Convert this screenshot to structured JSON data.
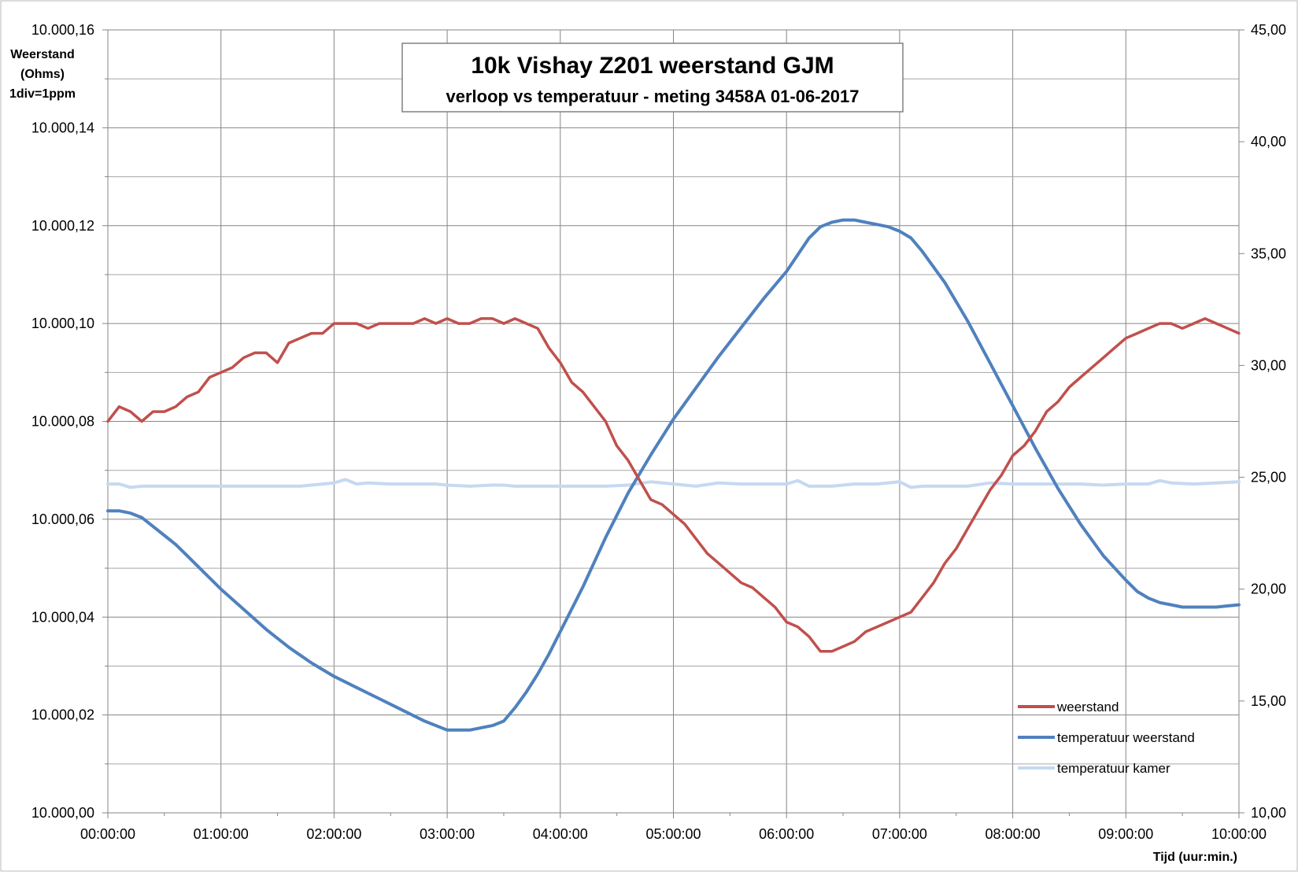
{
  "chart_data": {
    "type": "line",
    "title": "10k Vishay  Z201 weerstand GJM",
    "subtitle": "verloop vs temperatuur  - meting 3458A 01-06-2017",
    "ylabel_lines": [
      "Weerstand",
      "(Ohms)",
      "1div=1ppm"
    ],
    "xlabel": "Tijd (uur:min.)",
    "x_ticks": [
      "00:00:00",
      "01:00:00",
      "02:00:00",
      "03:00:00",
      "04:00:00",
      "05:00:00",
      "06:00:00",
      "07:00:00",
      "08:00:00",
      "09:00:00",
      "10:00:00"
    ],
    "y_left_ticks": [
      "10.000,00",
      "10.000,02",
      "10.000,04",
      "10.000,06",
      "10.000,08",
      "10.000,10",
      "10.000,12",
      "10.000,14",
      "10.000,16"
    ],
    "y_right_ticks": [
      "10,00",
      "15,00",
      "20,00",
      "25,00",
      "30,00",
      "35,00",
      "40,00",
      "45,00"
    ],
    "xlim_hours": [
      0,
      10
    ],
    "ylim_left": [
      10000.0,
      10000.16
    ],
    "ylim_right": [
      10,
      45
    ],
    "grid": true,
    "legend_position": "bottom-right",
    "series": [
      {
        "name": "weerstand",
        "axis": "left",
        "color": "#c0504d",
        "x_hours": [
          0,
          0.1,
          0.2,
          0.3,
          0.4,
          0.5,
          0.6,
          0.7,
          0.8,
          0.9,
          1.0,
          1.1,
          1.2,
          1.3,
          1.4,
          1.5,
          1.6,
          1.7,
          1.8,
          1.9,
          2.0,
          2.1,
          2.2,
          2.3,
          2.4,
          2.5,
          2.6,
          2.7,
          2.8,
          2.9,
          3.0,
          3.1,
          3.2,
          3.3,
          3.4,
          3.5,
          3.6,
          3.7,
          3.8,
          3.9,
          4.0,
          4.1,
          4.2,
          4.3,
          4.4,
          4.5,
          4.6,
          4.7,
          4.8,
          4.9,
          5.0,
          5.1,
          5.2,
          5.3,
          5.4,
          5.5,
          5.6,
          5.7,
          5.8,
          5.9,
          6.0,
          6.1,
          6.2,
          6.3,
          6.4,
          6.5,
          6.6,
          6.7,
          6.8,
          6.9,
          7.0,
          7.1,
          7.2,
          7.3,
          7.4,
          7.5,
          7.6,
          7.7,
          7.8,
          7.9,
          8.0,
          8.1,
          8.2,
          8.3,
          8.4,
          8.5,
          8.6,
          8.7,
          8.8,
          8.9,
          9.0,
          9.1,
          9.2,
          9.3,
          9.4,
          9.5,
          9.6,
          9.7,
          9.8,
          9.9,
          10.0
        ],
        "values": [
          10000.08,
          10000.083,
          10000.082,
          10000.08,
          10000.082,
          10000.082,
          10000.083,
          10000.085,
          10000.086,
          10000.089,
          10000.09,
          10000.091,
          10000.093,
          10000.094,
          10000.094,
          10000.092,
          10000.096,
          10000.097,
          10000.098,
          10000.098,
          10000.1,
          10000.1,
          10000.1,
          10000.099,
          10000.1,
          10000.1,
          10000.1,
          10000.1,
          10000.101,
          10000.1,
          10000.101,
          10000.1,
          10000.1,
          10000.101,
          10000.101,
          10000.1,
          10000.101,
          10000.1,
          10000.099,
          10000.095,
          10000.092,
          10000.088,
          10000.086,
          10000.083,
          10000.08,
          10000.075,
          10000.072,
          10000.068,
          10000.064,
          10000.063,
          10000.061,
          10000.059,
          10000.056,
          10000.053,
          10000.051,
          10000.049,
          10000.047,
          10000.046,
          10000.044,
          10000.042,
          10000.039,
          10000.038,
          10000.036,
          10000.033,
          10000.033,
          10000.034,
          10000.035,
          10000.037,
          10000.038,
          10000.039,
          10000.04,
          10000.041,
          10000.044,
          10000.047,
          10000.051,
          10000.054,
          10000.058,
          10000.062,
          10000.066,
          10000.069,
          10000.073,
          10000.075,
          10000.078,
          10000.082,
          10000.084,
          10000.087,
          10000.089,
          10000.091,
          10000.093,
          10000.095,
          10000.097,
          10000.098,
          10000.099,
          10000.1,
          10000.1,
          10000.099,
          10000.1,
          10000.101,
          10000.1,
          10000.099,
          10000.098
        ]
      },
      {
        "name": "temperatuur weerstand",
        "axis": "right",
        "color": "#4f81bd",
        "x_hours": [
          0,
          0.1,
          0.2,
          0.3,
          0.4,
          0.5,
          0.6,
          0.7,
          0.8,
          0.9,
          1.0,
          1.2,
          1.4,
          1.6,
          1.8,
          2.0,
          2.2,
          2.4,
          2.6,
          2.8,
          3.0,
          3.2,
          3.4,
          3.5,
          3.6,
          3.7,
          3.8,
          3.9,
          4.0,
          4.2,
          4.4,
          4.6,
          4.8,
          5.0,
          5.2,
          5.4,
          5.6,
          5.8,
          6.0,
          6.2,
          6.3,
          6.4,
          6.5,
          6.6,
          6.7,
          6.8,
          6.9,
          7.0,
          7.1,
          7.2,
          7.4,
          7.6,
          7.8,
          8.0,
          8.2,
          8.4,
          8.6,
          8.8,
          9.0,
          9.1,
          9.2,
          9.3,
          9.4,
          9.5,
          9.6,
          9.7,
          9.8,
          9.9,
          10.0
        ],
        "values": [
          23.5,
          23.5,
          23.4,
          23.2,
          22.8,
          22.4,
          22.0,
          21.5,
          21.0,
          20.5,
          20.0,
          19.1,
          18.2,
          17.4,
          16.7,
          16.1,
          15.6,
          15.1,
          14.6,
          14.1,
          13.7,
          13.7,
          13.9,
          14.1,
          14.7,
          15.4,
          16.2,
          17.1,
          18.1,
          20.1,
          22.3,
          24.3,
          26.0,
          27.6,
          29.0,
          30.4,
          31.7,
          33.0,
          34.2,
          35.7,
          36.2,
          36.4,
          36.5,
          36.5,
          36.4,
          36.3,
          36.2,
          36.0,
          35.7,
          35.1,
          33.7,
          32.0,
          30.1,
          28.2,
          26.3,
          24.5,
          22.9,
          21.5,
          20.4,
          19.9,
          19.6,
          19.4,
          19.3,
          19.2,
          19.2,
          19.2,
          19.2,
          19.25,
          19.3
        ]
      },
      {
        "name": "temperatuur kamer",
        "axis": "right",
        "color": "#c6d9f1",
        "x_hours": [
          0,
          0.1,
          0.2,
          0.3,
          0.5,
          0.7,
          0.9,
          1.1,
          1.3,
          1.5,
          1.7,
          1.9,
          2.0,
          2.1,
          2.2,
          2.3,
          2.5,
          2.7,
          2.9,
          3.0,
          3.2,
          3.4,
          3.5,
          3.6,
          3.8,
          4.0,
          4.2,
          4.4,
          4.6,
          4.8,
          5.0,
          5.2,
          5.4,
          5.6,
          5.8,
          6.0,
          6.1,
          6.2,
          6.4,
          6.6,
          6.8,
          7.0,
          7.1,
          7.2,
          7.4,
          7.6,
          7.8,
          8.0,
          8.2,
          8.4,
          8.6,
          8.8,
          9.0,
          9.2,
          9.3,
          9.4,
          9.6,
          9.8,
          10.0
        ],
        "values": [
          24.7,
          24.7,
          24.55,
          24.6,
          24.6,
          24.6,
          24.6,
          24.6,
          24.6,
          24.6,
          24.6,
          24.7,
          24.75,
          24.9,
          24.7,
          24.75,
          24.7,
          24.7,
          24.7,
          24.65,
          24.6,
          24.65,
          24.65,
          24.6,
          24.6,
          24.6,
          24.6,
          24.6,
          24.65,
          24.8,
          24.7,
          24.6,
          24.75,
          24.7,
          24.7,
          24.7,
          24.85,
          24.6,
          24.6,
          24.7,
          24.7,
          24.8,
          24.55,
          24.6,
          24.6,
          24.6,
          24.75,
          24.7,
          24.7,
          24.7,
          24.7,
          24.65,
          24.7,
          24.7,
          24.85,
          24.75,
          24.7,
          24.75,
          24.8
        ]
      }
    ]
  }
}
